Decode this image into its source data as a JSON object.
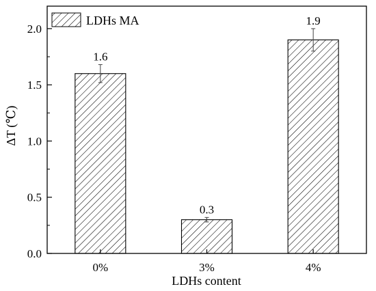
{
  "chart_data": {
    "type": "bar",
    "categories": [
      "0%",
      "3%",
      "4%"
    ],
    "series": [
      {
        "name": "LDHs MA",
        "values": [
          1.6,
          0.3,
          1.9
        ],
        "errors": [
          0.08,
          0.02,
          0.1
        ],
        "data_labels": [
          "1.6",
          "0.3",
          "1.9"
        ],
        "pattern": "diagonal-hatch"
      }
    ],
    "xlabel": "LDHs content",
    "ylabel": "ΔT (℃)",
    "ylim": [
      0,
      2.2
    ],
    "yticks": [
      0.0,
      0.5,
      1.0,
      1.5,
      2.0
    ],
    "ytick_labels": [
      "0.0",
      "0.5",
      "1.0",
      "1.5",
      "2.0"
    ],
    "grid": false,
    "legend_position": "top-left"
  }
}
